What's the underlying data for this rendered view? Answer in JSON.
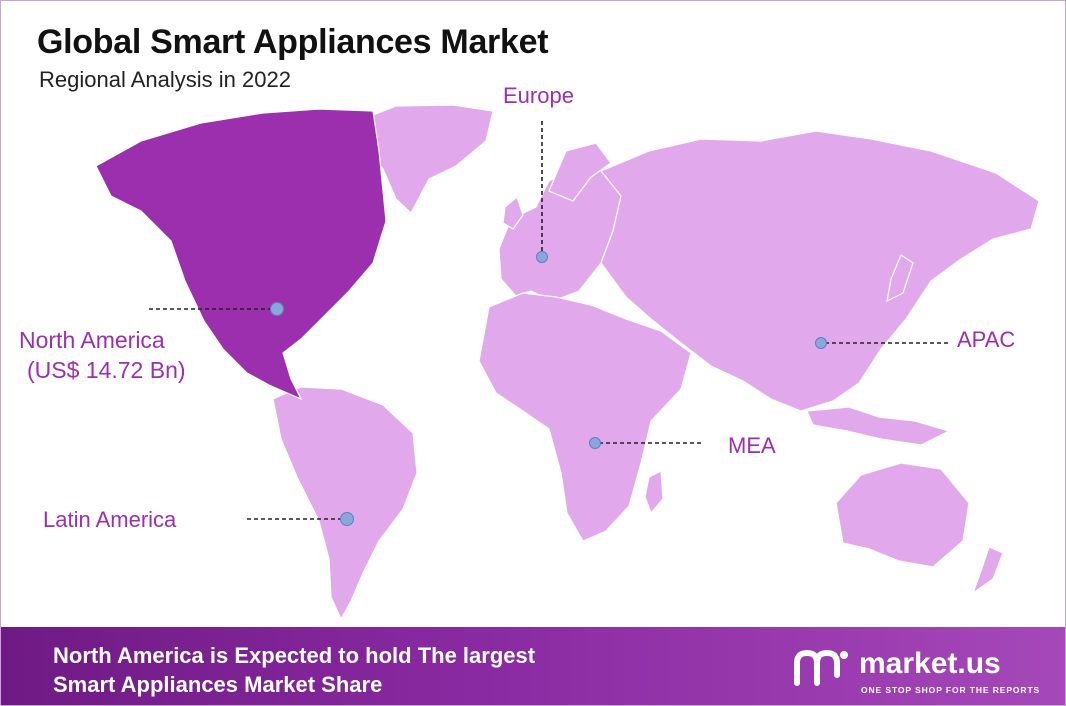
{
  "header": {
    "title": "Global Smart Appliances Market",
    "subtitle": "Regional Analysis in 2022"
  },
  "regions": {
    "europe": {
      "label": "Europe"
    },
    "north_america": {
      "label": "North America",
      "value": "(US$ 14.72 Bn)"
    },
    "apac": {
      "label": "APAC"
    },
    "mea": {
      "label": "MEA"
    },
    "latin_america": {
      "label": "Latin America"
    }
  },
  "footer": {
    "line1": "North America is Expected to hold The largest",
    "line2": "Smart Appliances Market Share"
  },
  "brand": {
    "name": "market.us",
    "tagline": "ONE STOP SHOP FOR THE REPORTS"
  },
  "colors": {
    "highlight_region": "#9b2fae",
    "other_regions": "#e2a8ec",
    "marker": "#8aa6dc",
    "label_text": "#9b2fae",
    "footer_bg": "#7e2196"
  }
}
